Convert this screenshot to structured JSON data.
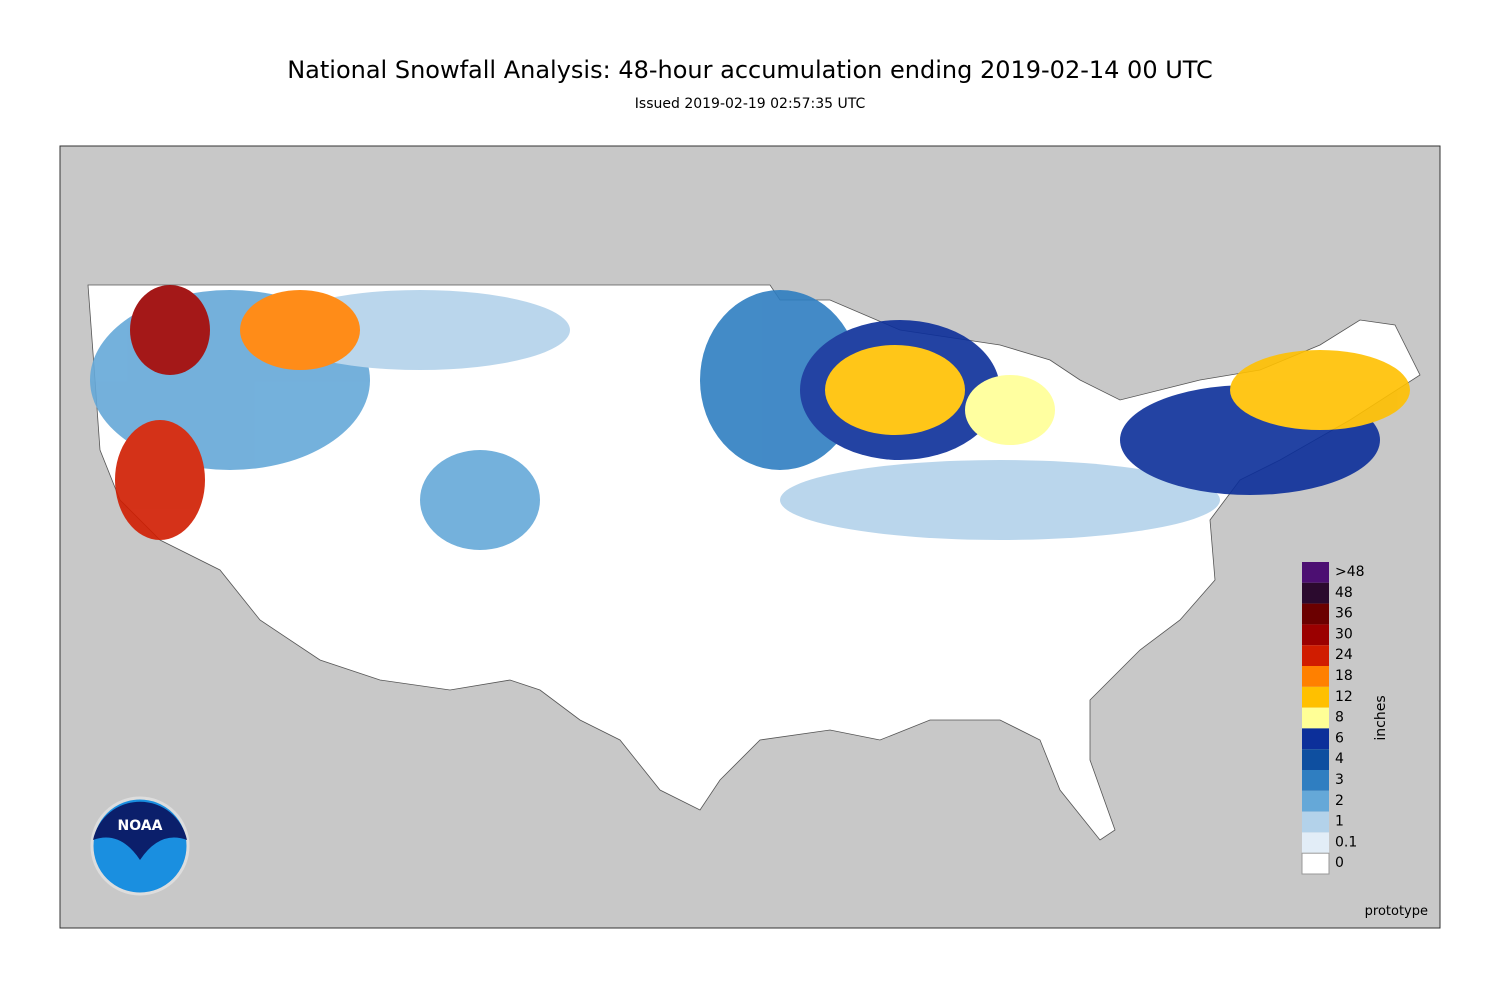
{
  "header": {
    "title": "National Snowfall Analysis: 48-hour accumulation ending 2019-02-14 00 UTC",
    "subtitle": "Issued 2019-02-19 02:57:35 UTC"
  },
  "legend": {
    "unit": "inches",
    "items": [
      {
        "label": ">48",
        "color": "#4c0f72"
      },
      {
        "label": "48",
        "color": "#2b0a2e"
      },
      {
        "label": "36",
        "color": "#6b0000"
      },
      {
        "label": "30",
        "color": "#9b0000"
      },
      {
        "label": "24",
        "color": "#d01c00"
      },
      {
        "label": "18",
        "color": "#ff8000"
      },
      {
        "label": "12",
        "color": "#ffc000"
      },
      {
        "label": "8",
        "color": "#ffff96"
      },
      {
        "label": "6",
        "color": "#0c2f9a"
      },
      {
        "label": "4",
        "color": "#0e4fa0"
      },
      {
        "label": "3",
        "color": "#2f7ec1"
      },
      {
        "label": "2",
        "color": "#65a8d8"
      },
      {
        "label": "1",
        "color": "#b3d2ea"
      },
      {
        "label": "0.1",
        "color": "#e2edf7"
      },
      {
        "label": "0",
        "color": "#ffffff"
      }
    ]
  },
  "logo": "NOAA",
  "note": "prototype"
}
